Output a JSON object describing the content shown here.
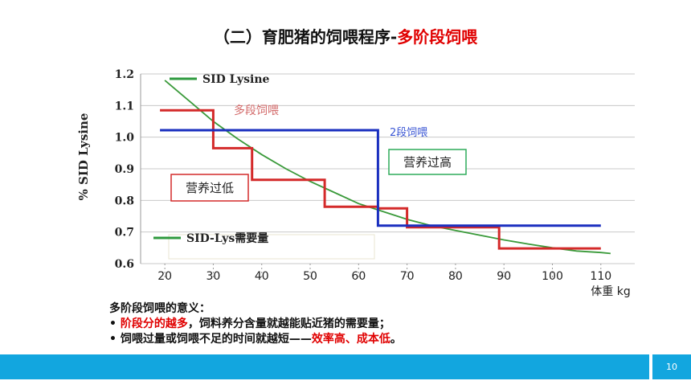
{
  "slide": {
    "title_prefix": "（二）育肥猪的饲喂程序-",
    "title_accent": "多阶段饲喂",
    "page_number": "10"
  },
  "notes": {
    "heading": "多阶段饲喂的意义：",
    "line1_bullet": "• ",
    "line1_red": "阶段分的越多",
    "line1_rest": "，饲料养分含量就越能贴近猪的需要量；",
    "line2_prefix": "• 饲喂过量或饲喂不足的时间就越短——",
    "line2_red": "效率高、成本低",
    "line2_end": "。"
  },
  "chart_data": {
    "type": "line",
    "ylabel": "% SID Lysine",
    "xlabel": "体重 kg",
    "xlim": [
      15,
      117
    ],
    "ylim": [
      0.6,
      1.2
    ],
    "x_ticks": [
      20,
      30,
      40,
      50,
      60,
      70,
      80,
      90,
      100,
      110
    ],
    "y_ticks": [
      "0.6",
      "0.7",
      "0.8",
      "0.9",
      "1.0",
      "1.1",
      "1.2"
    ],
    "grid": true,
    "legend": [
      {
        "label": "SID Lysine",
        "color": "#2e9a3e"
      },
      {
        "label": "SID-Lys需要量",
        "color": "#2e9a3e"
      }
    ],
    "annotations": {
      "multi": "多段饲喂",
      "two": "2段饲喂",
      "over": "营养过高",
      "under": "营养过低"
    },
    "series": [
      {
        "name": "SID-Lys需要量",
        "color": "#3a9a3a",
        "x": [
          20,
          25,
          30,
          35,
          40,
          45,
          50,
          55,
          60,
          65,
          70,
          75,
          80,
          85,
          90,
          95,
          100,
          105,
          110,
          112
        ],
        "y": [
          1.18,
          1.115,
          1.05,
          0.995,
          0.945,
          0.9,
          0.86,
          0.825,
          0.79,
          0.765,
          0.74,
          0.72,
          0.705,
          0.69,
          0.675,
          0.662,
          0.65,
          0.64,
          0.635,
          0.632
        ]
      },
      {
        "name": "多段饲喂",
        "color": "#d42a2a",
        "x": [
          19,
          30,
          30,
          38,
          38,
          53,
          53,
          64,
          64,
          70,
          70,
          89,
          89,
          110
        ],
        "y": [
          1.085,
          1.085,
          0.965,
          0.965,
          0.865,
          0.865,
          0.78,
          0.78,
          0.775,
          0.775,
          0.715,
          0.715,
          0.648,
          0.648
        ]
      },
      {
        "name": "2段饲喂",
        "color": "#1a2fbf",
        "x": [
          19,
          64,
          64,
          110
        ],
        "y": [
          1.022,
          1.022,
          0.72,
          0.72
        ]
      }
    ]
  }
}
